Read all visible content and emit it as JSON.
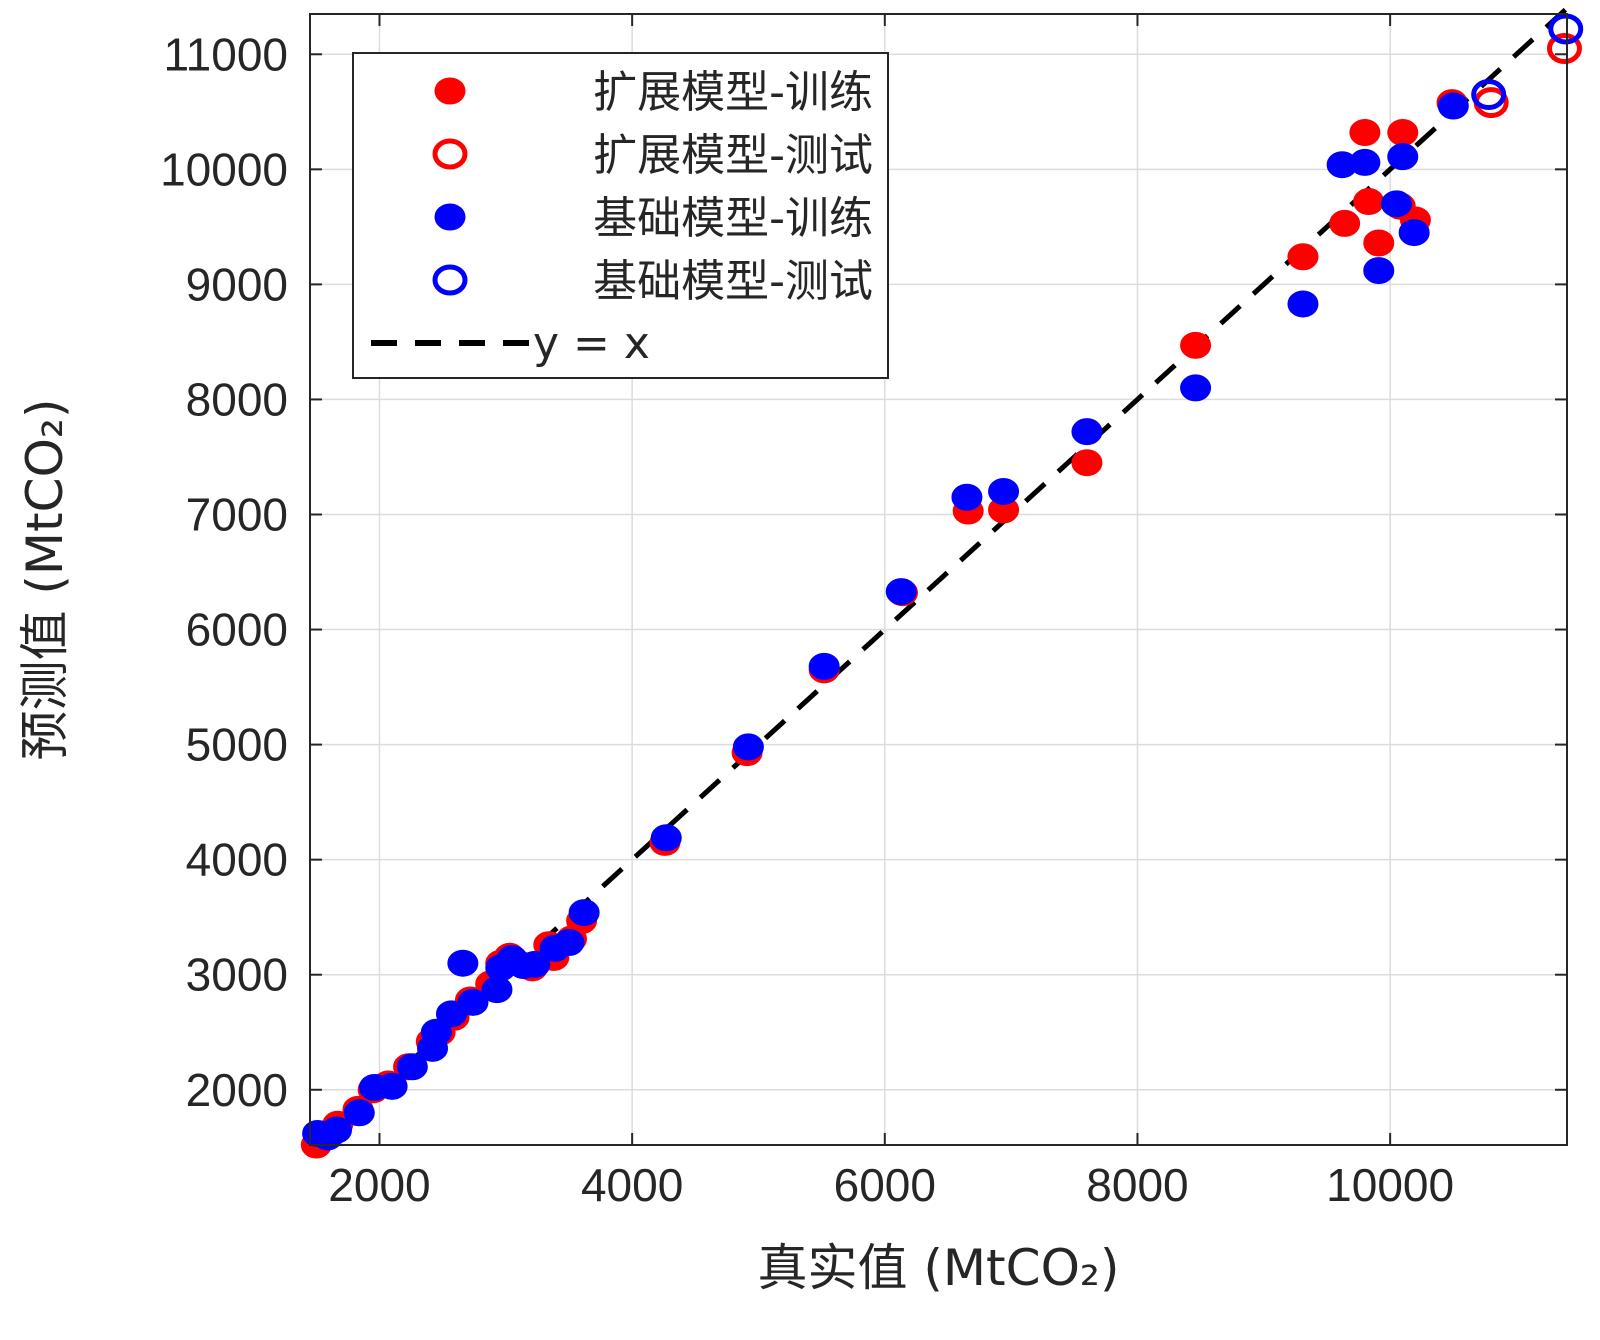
{
  "chart_data": {
    "type": "scatter",
    "xlabel": "真实值 (MtCO₂)",
    "ylabel": "预测值 (MtCO₂)",
    "xlim": [
      1450,
      11400
    ],
    "ylim": [
      1520,
      11350
    ],
    "xticks": [
      2000,
      4000,
      6000,
      8000,
      10000
    ],
    "yticks": [
      2000,
      3000,
      4000,
      5000,
      6000,
      7000,
      8000,
      9000,
      10000,
      11000
    ],
    "grid": true,
    "legend_position": "top-left",
    "series": [
      {
        "name": "扩展模型-训练",
        "color": "#ff0000",
        "marker": "filled-circle",
        "points": [
          [
            1500,
            1520
          ],
          [
            1580,
            1620
          ],
          [
            1670,
            1700
          ],
          [
            1830,
            1830
          ],
          [
            1950,
            2000
          ],
          [
            2070,
            2050
          ],
          [
            2230,
            2200
          ],
          [
            2410,
            2420
          ],
          [
            2480,
            2500
          ],
          [
            2590,
            2630
          ],
          [
            2720,
            2780
          ],
          [
            2880,
            2920
          ],
          [
            2960,
            3100
          ],
          [
            3030,
            3160
          ],
          [
            3210,
            3060
          ],
          [
            3380,
            3150
          ],
          [
            3340,
            3260
          ],
          [
            3520,
            3310
          ],
          [
            3600,
            3470
          ],
          [
            4260,
            4150
          ],
          [
            4910,
            4930
          ],
          [
            5520,
            5650
          ],
          [
            6140,
            6320
          ],
          [
            6660,
            7030
          ],
          [
            6940,
            7040
          ],
          [
            7600,
            7450
          ],
          [
            8460,
            8470
          ],
          [
            9310,
            9240
          ],
          [
            9640,
            9530
          ],
          [
            9800,
            10320
          ],
          [
            9830,
            9720
          ],
          [
            9910,
            9360
          ],
          [
            10100,
            10320
          ],
          [
            10080,
            9680
          ],
          [
            10200,
            9560
          ],
          [
            10490,
            10580
          ]
        ]
      },
      {
        "name": "扩展模型-测试",
        "color": "#ff0000",
        "marker": "open-circle",
        "points": [
          [
            10800,
            10580
          ],
          [
            11380,
            11050
          ]
        ]
      },
      {
        "name": "基础模型-训练",
        "color": "#0000ff",
        "marker": "filled-circle",
        "points": [
          [
            1510,
            1620
          ],
          [
            1590,
            1590
          ],
          [
            1660,
            1650
          ],
          [
            1840,
            1800
          ],
          [
            1960,
            2020
          ],
          [
            2100,
            2030
          ],
          [
            2260,
            2200
          ],
          [
            2420,
            2360
          ],
          [
            2450,
            2500
          ],
          [
            2570,
            2660
          ],
          [
            2660,
            3100
          ],
          [
            2740,
            2760
          ],
          [
            2930,
            2870
          ],
          [
            2960,
            3060
          ],
          [
            3050,
            3140
          ],
          [
            3140,
            3080
          ],
          [
            3230,
            3090
          ],
          [
            3390,
            3230
          ],
          [
            3500,
            3280
          ],
          [
            3620,
            3540
          ],
          [
            4270,
            4190
          ],
          [
            4920,
            4980
          ],
          [
            5520,
            5680
          ],
          [
            6130,
            6330
          ],
          [
            6650,
            7150
          ],
          [
            6940,
            7200
          ],
          [
            7600,
            7720
          ],
          [
            8460,
            8100
          ],
          [
            9310,
            8830
          ],
          [
            9620,
            10040
          ],
          [
            9800,
            10060
          ],
          [
            9910,
            9120
          ],
          [
            10050,
            9700
          ],
          [
            10100,
            10110
          ],
          [
            10190,
            9450
          ],
          [
            10500,
            10550
          ]
        ]
      },
      {
        "name": "基础模型-测试",
        "color": "#0000ff",
        "marker": "open-circle",
        "points": [
          [
            10780,
            10650
          ],
          [
            11390,
            11220
          ]
        ]
      },
      {
        "name": "y = x",
        "color": "#000000",
        "marker": "dashed-line",
        "points": [
          [
            1450,
            1450
          ],
          [
            11400,
            11400
          ]
        ]
      }
    ]
  }
}
